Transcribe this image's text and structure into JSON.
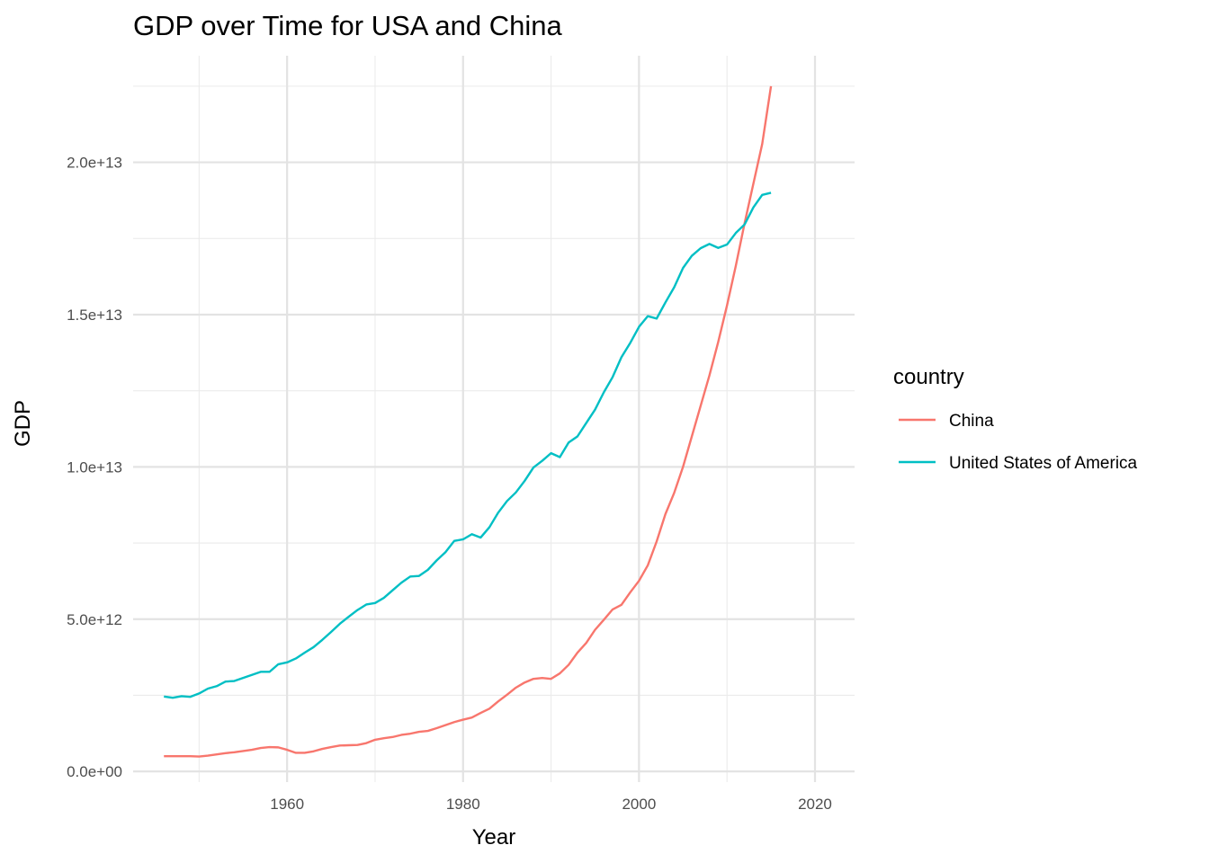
{
  "chart_data": {
    "type": "line",
    "title": "GDP over Time for USA and China",
    "xlabel": "Year",
    "ylabel": "GDP",
    "xlim": [
      1942.5,
      2024.5
    ],
    "ylim": [
      -350000000000.0,
      23500000000000.0
    ],
    "x_ticks": [
      1960,
      1980,
      2000,
      2020
    ],
    "x_tick_labels": [
      "1960",
      "1980",
      "2000",
      "2020"
    ],
    "y_ticks": [
      0,
      5000000000000.0,
      10000000000000.0,
      15000000000000.0,
      20000000000000.0
    ],
    "y_tick_labels": [
      "0.0e+00",
      "5.0e+12",
      "1.0e+13",
      "1.5e+13",
      "2.0e+13"
    ],
    "x_minor_ticks": [
      1950,
      1970,
      1990,
      2010
    ],
    "y_minor_ticks": [
      2500000000000.0,
      7500000000000.0,
      12500000000000.0,
      17500000000000.0,
      22500000000000.0
    ],
    "grid": true,
    "legend": {
      "title": "country",
      "placement": "right"
    },
    "series": [
      {
        "name": "China",
        "color": "#F8766D",
        "x": [
          1946,
          1947,
          1948,
          1949,
          1950,
          1951,
          1952,
          1953,
          1954,
          1955,
          1956,
          1957,
          1958,
          1959,
          1960,
          1961,
          1962,
          1963,
          1964,
          1965,
          1966,
          1967,
          1968,
          1969,
          1970,
          1971,
          1972,
          1973,
          1974,
          1975,
          1976,
          1977,
          1978,
          1979,
          1980,
          1981,
          1982,
          1983,
          1984,
          1985,
          1986,
          1987,
          1988,
          1989,
          1990,
          1991,
          1992,
          1993,
          1994,
          1995,
          1996,
          1997,
          1998,
          1999,
          2000,
          2001,
          2002,
          2003,
          2004,
          2005,
          2006,
          2007,
          2008,
          2009,
          2010,
          2011,
          2012,
          2013,
          2014,
          2015
        ],
        "values": [
          500000000000.0,
          500000000000.0,
          500000000000.0,
          500000000000.0,
          490000000000.0,
          520000000000.0,
          560000000000.0,
          600000000000.0,
          630000000000.0,
          670000000000.0,
          710000000000.0,
          770000000000.0,
          800000000000.0,
          790000000000.0,
          710000000000.0,
          610000000000.0,
          610000000000.0,
          660000000000.0,
          740000000000.0,
          800000000000.0,
          850000000000.0,
          860000000000.0,
          870000000000.0,
          930000000000.0,
          1040000000000.0,
          1090000000000.0,
          1130000000000.0,
          1200000000000.0,
          1240000000000.0,
          1300000000000.0,
          1330000000000.0,
          1420000000000.0,
          1520000000000.0,
          1620000000000.0,
          1700000000000.0,
          1770000000000.0,
          1920000000000.0,
          2060000000000.0,
          2300000000000.0,
          2520000000000.0,
          2750000000000.0,
          2920000000000.0,
          3040000000000.0,
          3070000000000.0,
          3040000000000.0,
          3220000000000.0,
          3500000000000.0,
          3900000000000.0,
          4220000000000.0,
          4650000000000.0,
          4980000000000.0,
          5320000000000.0,
          5470000000000.0,
          5880000000000.0,
          6260000000000.0,
          6770000000000.0,
          7550000000000.0,
          8450000000000.0,
          9150000000000.0,
          10000000000000.0,
          11000000000000.0,
          12000000000000.0,
          13000000000000.0,
          14100000000000.0,
          15300000000000.0,
          16600000000000.0,
          18000000000000.0,
          19300000000000.0,
          20600000000000.0,
          22500000000000.0
        ]
      },
      {
        "name": "United States of America",
        "color": "#00BFC4",
        "x": [
          1946,
          1947,
          1948,
          1949,
          1950,
          1951,
          1952,
          1953,
          1954,
          1955,
          1956,
          1957,
          1958,
          1959,
          1960,
          1961,
          1962,
          1963,
          1964,
          1965,
          1966,
          1967,
          1968,
          1969,
          1970,
          1971,
          1972,
          1973,
          1974,
          1975,
          1976,
          1977,
          1978,
          1979,
          1980,
          1981,
          1982,
          1983,
          1984,
          1985,
          1986,
          1987,
          1988,
          1989,
          1990,
          1991,
          1992,
          1993,
          1994,
          1995,
          1996,
          1997,
          1998,
          1999,
          2000,
          2001,
          2002,
          2003,
          2004,
          2005,
          2006,
          2007,
          2008,
          2009,
          2010,
          2011,
          2012,
          2013,
          2014,
          2015
        ],
        "values": [
          2460000000000.0,
          2420000000000.0,
          2470000000000.0,
          2450000000000.0,
          2560000000000.0,
          2720000000000.0,
          2800000000000.0,
          2950000000000.0,
          2970000000000.0,
          3070000000000.0,
          3170000000000.0,
          3270000000000.0,
          3270000000000.0,
          3520000000000.0,
          3580000000000.0,
          3710000000000.0,
          3900000000000.0,
          4080000000000.0,
          4320000000000.0,
          4580000000000.0,
          4850000000000.0,
          5080000000000.0,
          5300000000000.0,
          5480000000000.0,
          5530000000000.0,
          5700000000000.0,
          5950000000000.0,
          6200000000000.0,
          6400000000000.0,
          6420000000000.0,
          6620000000000.0,
          6930000000000.0,
          7200000000000.0,
          7570000000000.0,
          7620000000000.0,
          7790000000000.0,
          7680000000000.0,
          8020000000000.0,
          8500000000000.0,
          8880000000000.0,
          9160000000000.0,
          9540000000000.0,
          9980000000000.0,
          10200000000000.0,
          10450000000000.0,
          10320000000000.0,
          10800000000000.0,
          11000000000000.0,
          11440000000000.0,
          11880000000000.0,
          12450000000000.0,
          12950000000000.0,
          13600000000000.0,
          14070000000000.0,
          14600000000000.0,
          14950000000000.0,
          14870000000000.0,
          15400000000000.0,
          15900000000000.0,
          16530000000000.0,
          16930000000000.0,
          17180000000000.0,
          17320000000000.0,
          17190000000000.0,
          17300000000000.0,
          17680000000000.0,
          17960000000000.0,
          18520000000000.0,
          18930000000000.0,
          19000000000000.0
        ]
      }
    ]
  }
}
